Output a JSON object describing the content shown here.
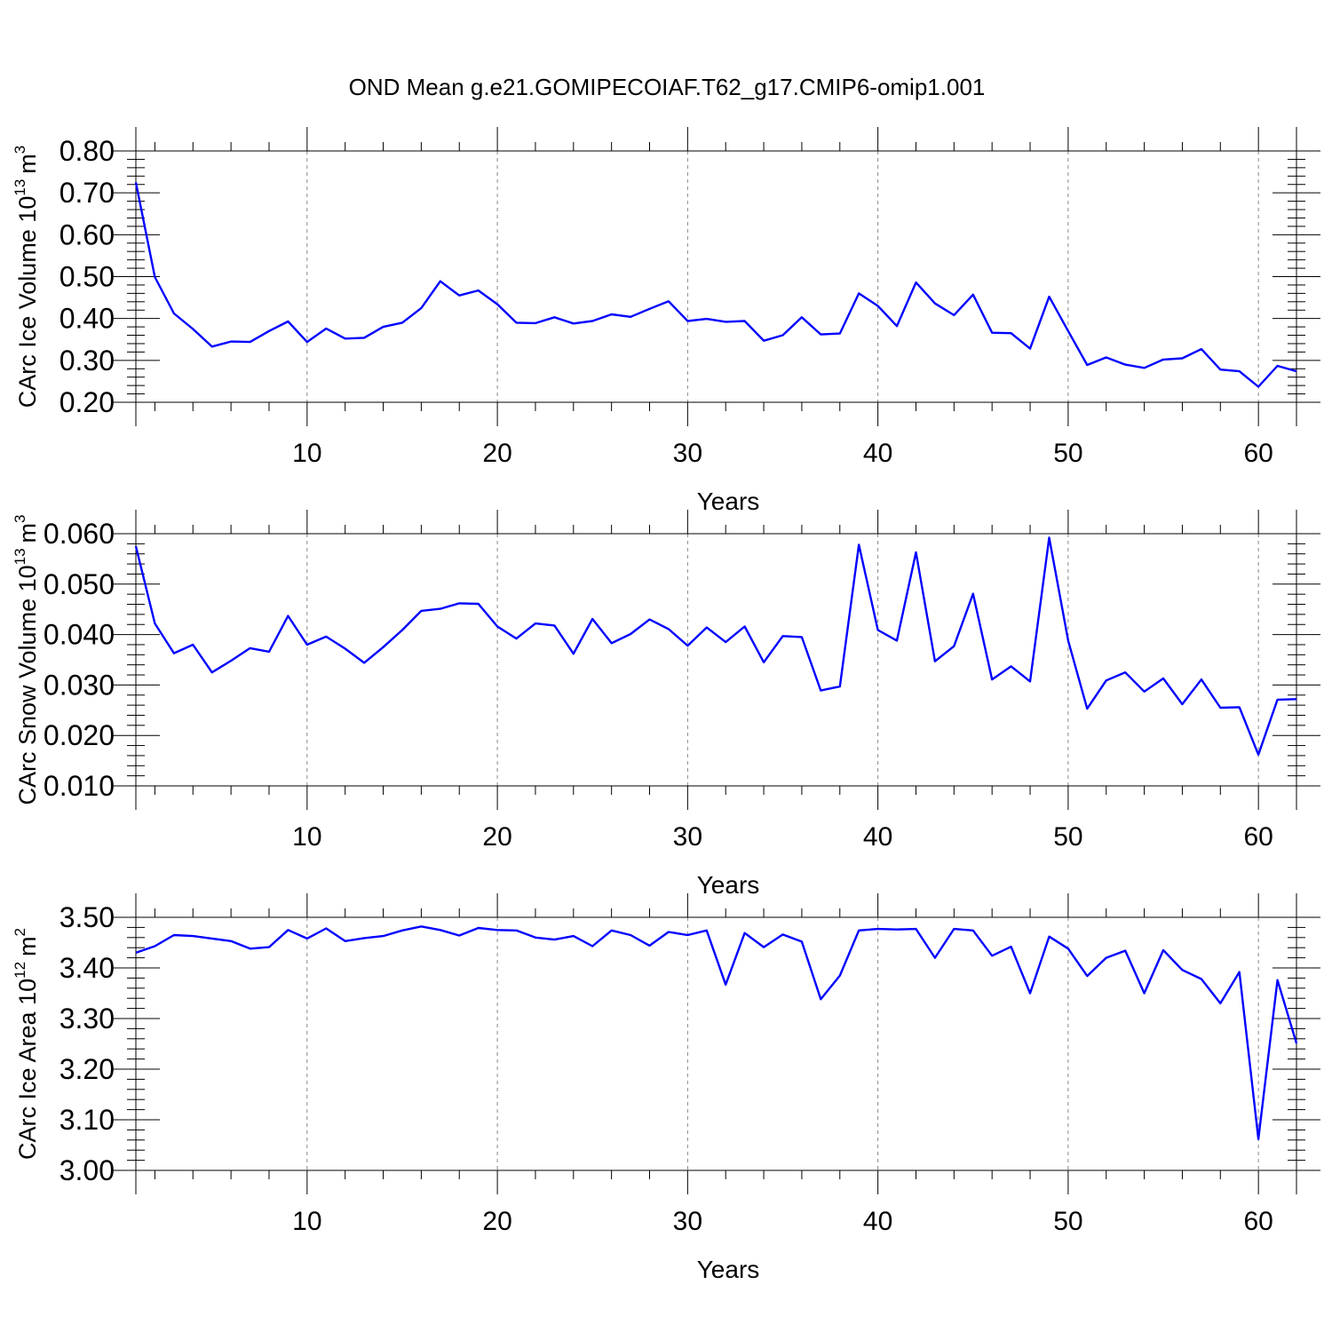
{
  "title": "OND Mean g.e21.GOMIPECOIAF.T62_g17.CMIP6-omip1.001",
  "line_color": "#0000ff",
  "chart_data": [
    {
      "type": "line",
      "ylabel_main": "CArc Ice Volume 10",
      "ylabel_exp": "13",
      "ylabel_unit": "m",
      "ylabel_unit_exp": "3",
      "xlabel": "Years",
      "xlim": [
        1,
        62
      ],
      "ylim": [
        0.2,
        0.8
      ],
      "yticks": [
        "0.20",
        "0.30",
        "0.40",
        "0.50",
        "0.60",
        "0.70",
        "0.80"
      ],
      "xticks": [
        "10",
        "20",
        "30",
        "40",
        "50",
        "60"
      ],
      "values": [
        0.725,
        0.499,
        0.412,
        0.375,
        0.333,
        0.345,
        0.344,
        0.37,
        0.393,
        0.344,
        0.376,
        0.352,
        0.354,
        0.38,
        0.39,
        0.425,
        0.489,
        0.455,
        0.467,
        0.434,
        0.39,
        0.389,
        0.403,
        0.388,
        0.394,
        0.41,
        0.404,
        0.423,
        0.441,
        0.394,
        0.399,
        0.392,
        0.394,
        0.347,
        0.36,
        0.403,
        0.362,
        0.364,
        0.46,
        0.43,
        0.382,
        0.486,
        0.436,
        0.408,
        0.457,
        0.366,
        0.365,
        0.328,
        0.452,
        0.37,
        0.289,
        0.307,
        0.29,
        0.282,
        0.302,
        0.305,
        0.327,
        0.278,
        0.274,
        0.237,
        0.287,
        0.274
      ]
    },
    {
      "type": "line",
      "ylabel_main": "CArc Snow Volume 10",
      "ylabel_exp": "13",
      "ylabel_unit": "m",
      "ylabel_unit_exp": "3",
      "xlabel": "Years",
      "xlim": [
        1,
        62
      ],
      "ylim": [
        0.01,
        0.06
      ],
      "yticks": [
        "0.010",
        "0.020",
        "0.030",
        "0.040",
        "0.050",
        "0.060"
      ],
      "xticks": [
        "10",
        "20",
        "30",
        "40",
        "50",
        "60"
      ],
      "values": [
        0.0575,
        0.0422,
        0.0363,
        0.038,
        0.0325,
        0.0348,
        0.0373,
        0.0366,
        0.0437,
        0.038,
        0.0396,
        0.0372,
        0.0344,
        0.0375,
        0.0409,
        0.0447,
        0.0451,
        0.0462,
        0.0461,
        0.0416,
        0.0392,
        0.0422,
        0.0418,
        0.0362,
        0.0431,
        0.0383,
        0.0401,
        0.043,
        0.0411,
        0.0378,
        0.0414,
        0.0385,
        0.0416,
        0.0345,
        0.0397,
        0.0395,
        0.0289,
        0.0297,
        0.0578,
        0.0409,
        0.0388,
        0.0563,
        0.0347,
        0.0377,
        0.0481,
        0.0311,
        0.0337,
        0.0307,
        0.0592,
        0.0388,
        0.0253,
        0.0309,
        0.0325,
        0.0287,
        0.0313,
        0.0262,
        0.0311,
        0.0255,
        0.0256,
        0.0162,
        0.0271,
        0.0272
      ]
    },
    {
      "type": "line",
      "ylabel_main": "CArc Ice Area 10",
      "ylabel_exp": "12",
      "ylabel_unit": "m",
      "ylabel_unit_exp": "2",
      "xlabel": "Years",
      "xlim": [
        1,
        62
      ],
      "ylim": [
        3.0,
        3.5
      ],
      "yticks": [
        "3.00",
        "3.10",
        "3.20",
        "3.30",
        "3.40",
        "3.50"
      ],
      "xticks": [
        "10",
        "20",
        "30",
        "40",
        "50",
        "60"
      ],
      "values": [
        3.43,
        3.443,
        3.465,
        3.463,
        3.458,
        3.453,
        3.438,
        3.441,
        3.475,
        3.458,
        3.478,
        3.453,
        3.459,
        3.463,
        3.474,
        3.482,
        3.475,
        3.464,
        3.479,
        3.475,
        3.474,
        3.46,
        3.456,
        3.463,
        3.443,
        3.474,
        3.465,
        3.444,
        3.471,
        3.465,
        3.474,
        3.367,
        3.469,
        3.441,
        3.466,
        3.452,
        3.338,
        3.385,
        3.474,
        3.477,
        3.476,
        3.477,
        3.42,
        3.477,
        3.474,
        3.424,
        3.442,
        3.35,
        3.462,
        3.438,
        3.384,
        3.42,
        3.434,
        3.35,
        3.435,
        3.396,
        3.378,
        3.33,
        3.392,
        3.062,
        3.376,
        3.251
      ]
    }
  ]
}
